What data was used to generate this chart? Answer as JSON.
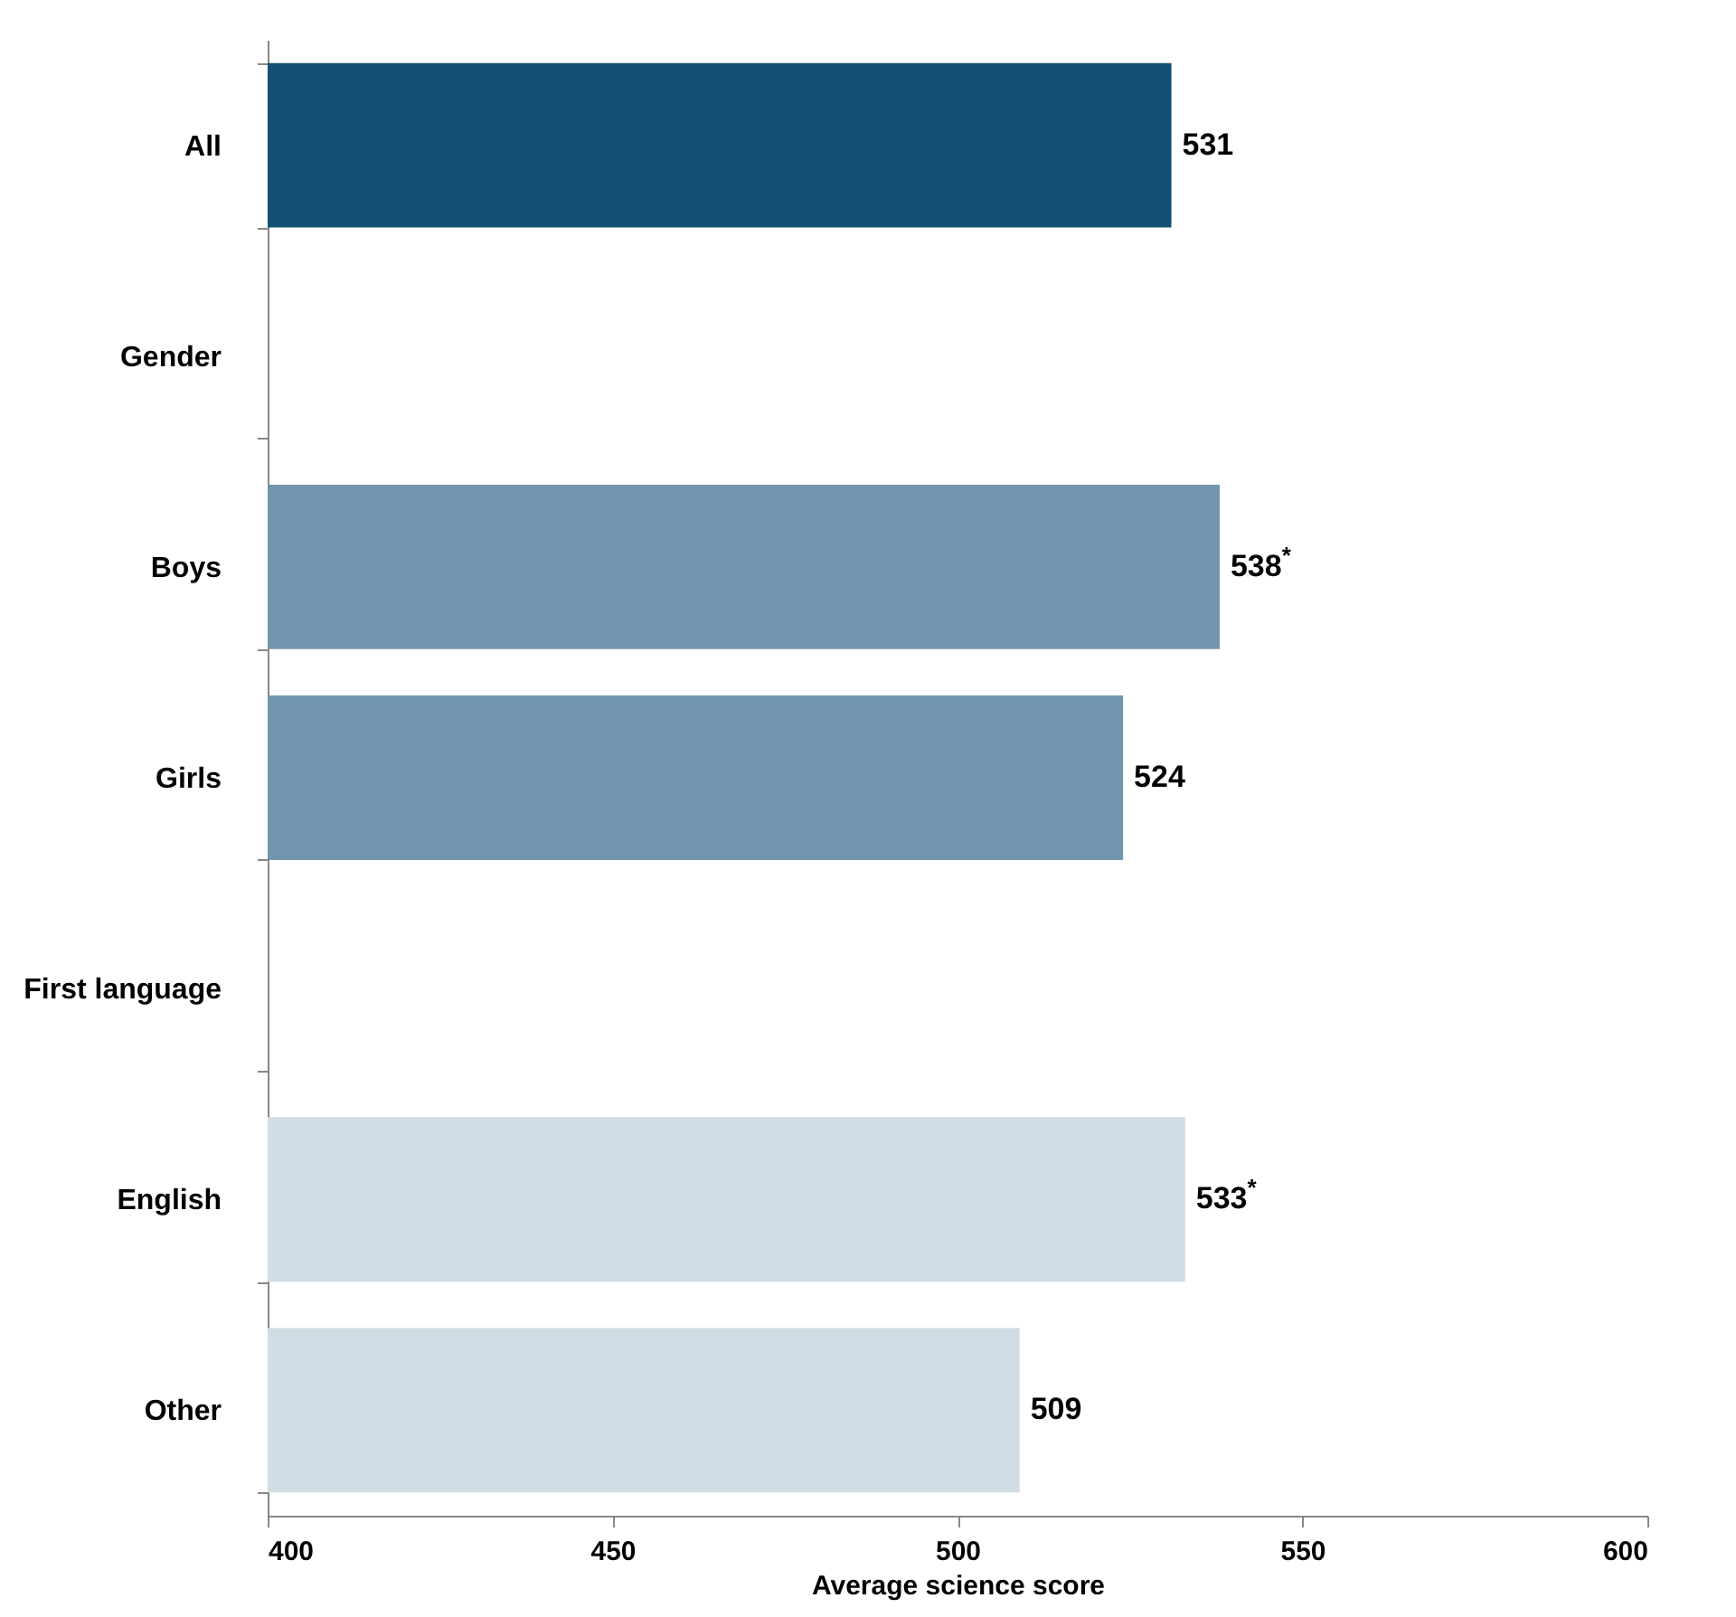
{
  "chart_data": {
    "type": "bar",
    "orientation": "horizontal",
    "xlabel": "Average science score",
    "categories": [
      "All",
      "Gender",
      "Boys",
      "Girls",
      "First language",
      "English",
      "Other"
    ],
    "values": [
      531,
      null,
      538,
      524,
      null,
      533,
      509
    ],
    "colors": [
      "#134f73",
      "#134f73",
      "#7095ad",
      "#7095ad",
      "#d0dde5",
      "#d0dde5",
      "#d0dde5"
    ],
    "value_labels": [
      "531",
      null,
      "538$^{*}$",
      "524",
      null,
      "533$^{*}$",
      "509"
    ],
    "xlim": [
      400,
      600
    ],
    "xticks": [
      400,
      450,
      500,
      550,
      600
    ],
    "grid": false
  }
}
